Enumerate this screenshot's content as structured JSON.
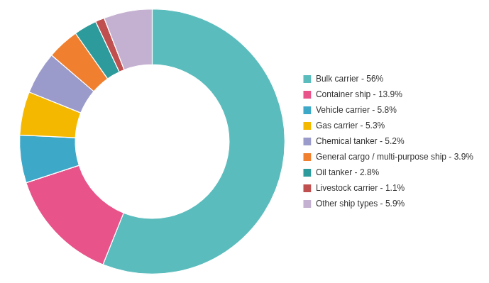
{
  "chart_data": {
    "type": "doughnut",
    "categories": [
      "Bulk carrier - 56%",
      "Container ship - 13.9%",
      "Vehicle carrier - 5.8%",
      "Gas carrier - 5.3%",
      "Chemical tanker - 5.2%",
      "General cargo / multi-purpose ship - 3.9%",
      "Oil tanker - 2.8%",
      "Livestock carrier - 1.1%",
      "Other ship types - 5.9%"
    ],
    "values": [
      56,
      13.9,
      5.8,
      5.3,
      5.2,
      3.9,
      2.8,
      1.1,
      5.9
    ],
    "colors": [
      "#5bbcbd",
      "#e8538a",
      "#3ea8c8",
      "#f5b800",
      "#9b9bcb",
      "#f08030",
      "#2d9b9b",
      "#c05050",
      "#c4b0d0"
    ],
    "legend": "right"
  }
}
